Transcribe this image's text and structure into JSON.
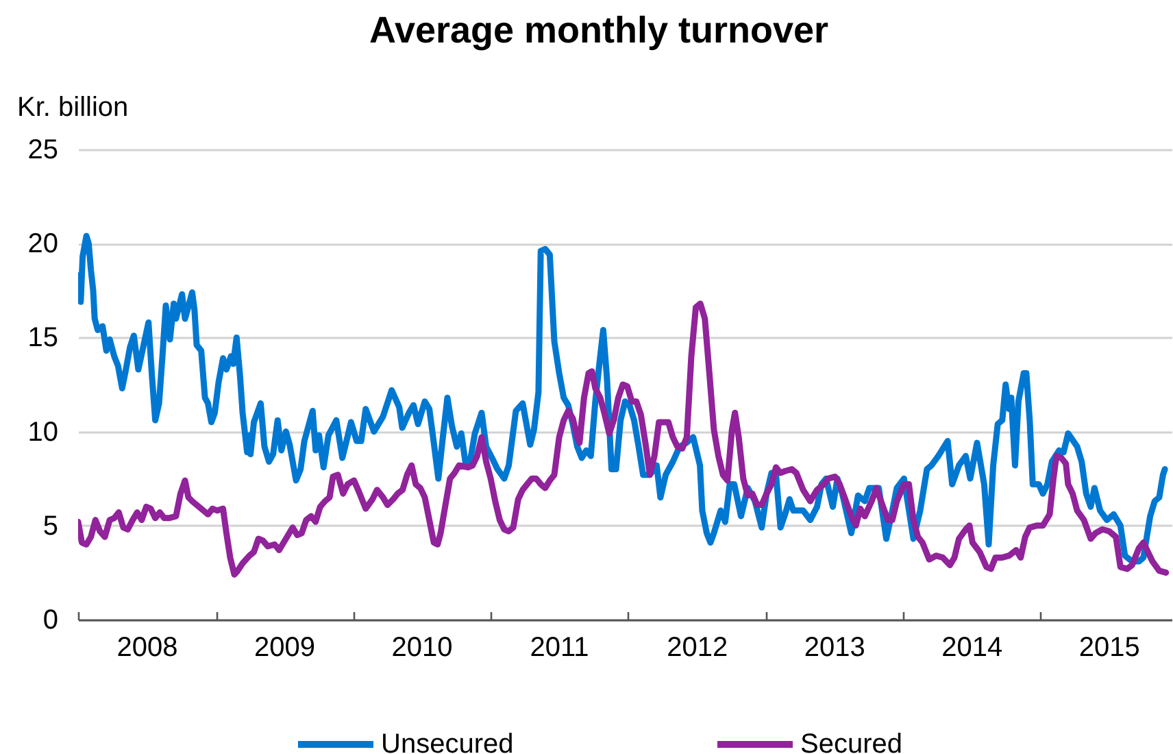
{
  "chart_data": {
    "type": "line",
    "title": "Average monthly turnover",
    "ylabel": "Kr. billion",
    "xlim": [
      "2008-01-01",
      "2015-12-15"
    ],
    "ylim": [
      0,
      25
    ],
    "yticks": [
      0,
      5,
      10,
      15,
      20,
      25
    ],
    "xticks": [
      {
        "value": "2008-01-01",
        "label": null
      },
      {
        "value": "2008-07-01",
        "label": "2008"
      },
      {
        "value": "2009-01-01",
        "label": null
      },
      {
        "value": "2009-07-01",
        "label": "2009"
      },
      {
        "value": "2010-01-01",
        "label": null
      },
      {
        "value": "2010-07-01",
        "label": "2010"
      },
      {
        "value": "2011-01-01",
        "label": null
      },
      {
        "value": "2011-07-01",
        "label": "2011"
      },
      {
        "value": "2012-01-01",
        "label": null
      },
      {
        "value": "2012-07-01",
        "label": "2012"
      },
      {
        "value": "2013-01-01",
        "label": null
      },
      {
        "value": "2013-07-01",
        "label": "2013"
      },
      {
        "value": "2014-01-01",
        "label": null
      },
      {
        "value": "2014-07-01",
        "label": "2014"
      },
      {
        "value": "2015-01-01",
        "label": null
      },
      {
        "value": "2015-07-01",
        "label": "2015"
      }
    ],
    "grid": "y",
    "legend": "bottom",
    "series": [
      {
        "name": "Unsecured",
        "color": "#0078d2",
        "x": [
          "2008-01-01",
          "2008-01-08",
          "2008-01-13",
          "2008-01-23",
          "2008-01-29",
          "2008-02-04",
          "2008-02-10",
          "2008-02-14",
          "2008-02-22",
          "2008-03-06",
          "2008-03-16",
          "2008-03-25",
          "2008-04-06",
          "2008-04-16",
          "2008-04-27",
          "2008-05-06",
          "2008-05-18",
          "2008-05-28",
          "2008-06-09",
          "2008-06-22",
          "2008-07-06",
          "2008-07-15",
          "2008-07-24",
          "2008-08-03",
          "2008-08-12",
          "2008-08-21",
          "2008-09-01",
          "2008-09-11",
          "2008-09-17",
          "2008-10-03",
          "2008-10-11",
          "2008-10-18",
          "2008-10-30",
          "2008-11-05",
          "2008-11-11",
          "2008-11-23",
          "2008-12-03",
          "2008-12-11",
          "2008-12-20",
          "2008-12-29",
          "2009-01-08",
          "2009-01-20",
          "2009-01-29",
          "2009-02-10",
          "2009-02-16",
          "2009-02-25",
          "2009-03-06",
          "2009-03-13",
          "2009-03-25",
          "2009-03-31",
          "2009-04-03",
          "2009-04-12",
          "2009-04-30",
          "2009-05-10",
          "2009-05-22",
          "2009-06-02",
          "2009-06-14",
          "2009-06-24",
          "2009-07-06",
          "2009-07-16",
          "2009-08-02",
          "2009-08-14",
          "2009-08-24",
          "2009-09-15",
          "2009-09-23",
          "2009-10-02",
          "2009-10-14",
          "2009-10-27",
          "2009-11-17",
          "2009-12-03",
          "2009-12-14",
          "2009-12-26",
          "2010-01-10",
          "2010-01-22",
          "2010-02-03",
          "2010-02-25",
          "2010-03-21",
          "2010-04-13",
          "2010-05-03",
          "2010-05-11",
          "2010-05-29",
          "2010-06-10",
          "2010-06-22",
          "2010-07-10",
          "2010-07-22",
          "2010-08-03",
          "2010-08-15",
          "2010-08-27",
          "2010-09-08",
          "2010-09-20",
          "2010-10-03",
          "2010-10-15",
          "2010-10-27",
          "2010-11-08",
          "2010-11-20",
          "2010-12-08",
          "2010-12-20",
          "2011-01-07",
          "2011-01-19",
          "2011-02-06",
          "2011-02-18",
          "2011-03-09",
          "2011-03-27",
          "2011-04-16",
          "2011-04-26",
          "2011-05-08",
          "2011-05-14",
          "2011-05-26",
          "2011-06-07",
          "2011-06-19",
          "2011-07-02",
          "2011-07-14",
          "2011-07-26",
          "2011-08-07",
          "2011-08-19",
          "2011-08-31",
          "2011-09-12",
          "2011-09-24",
          "2011-10-06",
          "2011-10-19",
          "2011-10-27",
          "2011-11-06",
          "2011-11-18",
          "2011-11-30",
          "2011-12-12",
          "2011-12-24",
          "2012-01-05",
          "2012-01-17",
          "2012-01-29",
          "2012-02-10",
          "2012-02-28",
          "2012-03-17",
          "2012-03-27",
          "2012-04-10",
          "2012-04-29",
          "2012-05-17",
          "2012-06-04",
          "2012-06-22",
          "2012-07-10",
          "2012-07-16",
          "2012-07-28",
          "2012-08-07",
          "2012-08-16",
          "2012-09-03",
          "2012-09-15",
          "2012-09-27",
          "2012-10-09",
          "2012-10-27",
          "2012-11-14",
          "2012-12-03",
          "2012-12-21",
          "2013-01-03",
          "2013-01-16",
          "2013-01-28",
          "2013-02-09",
          "2013-02-21",
          "2013-03-05",
          "2013-03-15",
          "2013-04-10",
          "2013-04-29",
          "2013-05-17",
          "2013-05-29",
          "2013-06-10",
          "2013-06-28",
          "2013-07-10",
          "2013-07-23",
          "2013-08-16",
          "2013-09-03",
          "2013-09-21",
          "2013-10-03",
          "2013-10-28",
          "2013-11-17",
          "2013-12-03",
          "2013-12-15",
          "2014-01-03",
          "2014-01-28",
          "2014-02-15",
          "2014-03-05",
          "2014-03-17",
          "2014-04-04",
          "2014-04-29",
          "2014-05-11",
          "2014-05-29",
          "2014-06-16",
          "2014-06-28",
          "2014-07-16",
          "2014-08-04",
          "2014-08-16",
          "2014-08-28",
          "2014-09-09",
          "2014-09-21",
          "2014-09-30",
          "2014-10-09",
          "2014-10-15",
          "2014-10-25",
          "2014-11-03",
          "2014-11-17",
          "2014-11-24",
          "2014-12-03",
          "2014-12-11",
          "2014-12-27",
          "2015-01-07",
          "2015-01-19",
          "2015-01-31",
          "2015-02-19",
          "2015-03-03",
          "2015-03-15",
          "2015-04-08",
          "2015-04-20",
          "2015-05-02",
          "2015-05-14",
          "2015-05-24",
          "2015-06-08",
          "2015-06-26",
          "2015-07-14",
          "2015-08-01",
          "2015-08-13",
          "2015-09-01",
          "2015-09-19",
          "2015-10-01",
          "2015-10-19",
          "2015-10-31",
          "2015-11-12",
          "2015-11-22",
          "2015-11-27"
        ],
        "values": [
          18.3,
          16.9,
          19.3,
          20.4,
          20.0,
          18.6,
          17.5,
          16.0,
          15.4,
          15.6,
          14.3,
          14.9,
          14.0,
          13.5,
          12.3,
          13.2,
          14.5,
          15.1,
          13.3,
          14.5,
          15.8,
          13.0,
          10.6,
          11.5,
          14.0,
          16.7,
          14.9,
          16.8,
          16.0,
          17.3,
          16.0,
          16.5,
          17.4,
          16.5,
          14.6,
          14.3,
          11.8,
          11.5,
          10.5,
          11.0,
          12.6,
          13.9,
          13.3,
          14.0,
          13.6,
          15.0,
          13.0,
          11.0,
          8.9,
          9.8,
          8.8,
          10.5,
          11.5,
          9.2,
          8.4,
          8.8,
          10.6,
          9.0,
          10.0,
          9.3,
          7.4,
          8.0,
          9.5,
          11.1,
          9.0,
          9.8,
          8.1,
          9.8,
          10.6,
          8.6,
          9.5,
          10.5,
          9.5,
          9.5,
          11.2,
          10.0,
          10.8,
          12.2,
          11.3,
          10.2,
          11.0,
          11.4,
          10.4,
          11.6,
          11.2,
          9.4,
          7.5,
          9.7,
          11.8,
          10.3,
          9.2,
          9.9,
          8.2,
          8.5,
          9.9,
          11.0,
          9.2,
          8.5,
          8.0,
          7.5,
          8.2,
          11.1,
          11.5,
          9.3,
          10.1,
          12.1,
          19.6,
          19.7,
          19.4,
          14.8,
          13.1,
          11.8,
          11.4,
          10.4,
          9.2,
          8.6,
          9.0,
          8.7,
          11.6,
          14.0,
          15.4,
          12.8,
          8.0,
          8.0,
          10.6,
          11.6,
          11.4,
          10.6,
          9.2,
          7.7,
          7.7,
          8.2,
          6.5,
          7.7,
          8.4,
          9.2,
          9.4,
          9.7,
          8.2,
          5.8,
          4.6,
          4.1,
          4.6,
          5.8,
          5.2,
          7.2,
          7.2,
          5.5,
          7.0,
          6.3,
          4.9,
          6.7,
          7.8,
          7.7,
          4.9,
          5.6,
          6.4,
          5.8,
          5.8,
          5.3,
          6.0,
          7.2,
          7.5,
          6.0,
          7.5,
          6.7,
          4.6,
          6.6,
          6.3,
          7.0,
          7.0,
          4.3,
          5.8,
          7.0,
          7.5,
          4.3,
          5.8,
          8.0,
          8.2,
          8.7,
          9.5,
          7.2,
          8.2,
          8.7,
          7.5,
          9.4,
          7.2,
          4.0,
          8.2,
          10.4,
          10.6,
          12.5,
          11.2,
          11.8,
          8.2,
          11.6,
          13.1,
          13.1,
          10.6,
          7.2,
          7.2,
          6.7,
          7.2,
          8.4,
          9.0,
          8.9,
          9.9,
          9.2,
          8.4,
          6.7,
          6.0,
          7.0,
          5.8,
          5.3,
          5.6,
          5.0,
          3.4,
          3.1,
          3.1,
          3.3,
          5.5,
          6.3,
          6.5,
          7.7,
          8.0
        ]
      },
      {
        "name": "Secured",
        "color": "#91239b",
        "x": [
          "2008-01-01",
          "2008-01-11",
          "2008-01-23",
          "2008-02-04",
          "2008-02-16",
          "2008-02-28",
          "2008-03-12",
          "2008-03-25",
          "2008-04-06",
          "2008-04-18",
          "2008-04-30",
          "2008-05-12",
          "2008-05-25",
          "2008-06-06",
          "2008-06-18",
          "2008-06-30",
          "2008-07-12",
          "2008-07-24",
          "2008-08-05",
          "2008-08-17",
          "2008-08-29",
          "2008-09-17",
          "2008-09-29",
          "2008-10-11",
          "2008-10-20",
          "2008-10-30",
          "2008-11-17",
          "2008-11-29",
          "2008-12-11",
          "2008-12-23",
          "2009-01-05",
          "2009-01-20",
          "2009-01-29",
          "2009-02-08",
          "2009-02-19",
          "2009-02-28",
          "2009-03-13",
          "2009-03-31",
          "2009-04-12",
          "2009-04-24",
          "2009-05-06",
          "2009-05-19",
          "2009-06-06",
          "2009-06-18",
          "2009-07-06",
          "2009-07-24",
          "2009-08-05",
          "2009-08-17",
          "2009-08-29",
          "2009-09-11",
          "2009-09-23",
          "2009-10-05",
          "2009-10-18",
          "2009-10-30",
          "2009-11-08",
          "2009-11-21",
          "2009-12-05",
          "2009-12-17",
          "2010-01-03",
          "2010-01-16",
          "2010-02-03",
          "2010-02-21",
          "2010-03-05",
          "2010-03-21",
          "2010-04-02",
          "2010-04-17",
          "2010-04-29",
          "2010-05-12",
          "2010-05-24",
          "2010-06-05",
          "2010-06-16",
          "2010-06-28",
          "2010-07-10",
          "2010-07-22",
          "2010-08-03",
          "2010-08-13",
          "2010-08-21",
          "2010-09-02",
          "2010-09-15",
          "2010-09-27",
          "2010-10-09",
          "2010-11-02",
          "2010-11-14",
          "2010-11-26",
          "2010-12-08",
          "2010-12-20",
          "2011-01-01",
          "2011-01-13",
          "2011-01-25",
          "2011-02-06",
          "2011-02-18",
          "2011-03-02",
          "2011-03-15",
          "2011-03-27",
          "2011-04-08",
          "2011-04-20",
          "2011-05-02",
          "2011-05-14",
          "2011-05-26",
          "2011-06-07",
          "2011-06-19",
          "2011-07-02",
          "2011-07-14",
          "2011-07-26",
          "2011-08-07",
          "2011-08-19",
          "2011-08-25",
          "2011-09-06",
          "2011-09-18",
          "2011-09-27",
          "2011-10-06",
          "2011-10-19",
          "2011-10-31",
          "2011-11-12",
          "2011-11-24",
          "2011-12-06",
          "2011-12-18",
          "2011-12-30",
          "2012-01-11",
          "2012-01-23",
          "2012-02-04",
          "2012-02-16",
          "2012-02-28",
          "2012-03-11",
          "2012-03-23",
          "2012-04-17",
          "2012-04-29",
          "2012-05-11",
          "2012-05-24",
          "2012-06-05",
          "2012-06-17",
          "2012-06-29",
          "2012-07-11",
          "2012-07-23",
          "2012-08-04",
          "2012-08-16",
          "2012-08-28",
          "2012-09-09",
          "2012-09-21",
          "2012-10-03",
          "2012-10-11",
          "2012-10-21",
          "2012-11-02",
          "2012-11-14",
          "2012-11-26",
          "2012-12-09",
          "2012-12-21",
          "2013-01-03",
          "2013-01-16",
          "2013-01-28",
          "2013-02-09",
          "2013-02-21",
          "2013-03-11",
          "2013-03-23",
          "2013-04-10",
          "2013-04-29",
          "2013-05-17",
          "2013-06-04",
          "2013-06-16",
          "2013-07-04",
          "2013-07-16",
          "2013-07-29",
          "2013-08-16",
          "2013-08-28",
          "2013-09-09",
          "2013-09-21",
          "2013-10-09",
          "2013-10-22",
          "2013-11-03",
          "2013-11-21",
          "2013-12-03",
          "2013-12-15",
          "2014-01-03",
          "2014-01-16",
          "2014-01-28",
          "2014-02-09",
          "2014-02-21",
          "2014-03-11",
          "2014-03-29",
          "2014-04-16",
          "2014-05-05",
          "2014-05-17",
          "2014-05-29",
          "2014-06-16",
          "2014-06-26",
          "2014-07-04",
          "2014-07-23",
          "2014-08-10",
          "2014-08-22",
          "2014-09-03",
          "2014-09-21",
          "2014-10-09",
          "2014-10-28",
          "2014-11-09",
          "2014-11-21",
          "2014-12-03",
          "2014-12-21",
          "2015-01-07",
          "2015-01-25",
          "2015-02-04",
          "2015-02-12",
          "2015-02-25",
          "2015-03-09",
          "2015-03-15",
          "2015-03-27",
          "2015-04-08",
          "2015-04-26",
          "2015-05-14",
          "2015-05-27",
          "2015-06-14",
          "2015-07-02",
          "2015-07-20",
          "2015-08-01",
          "2015-08-19",
          "2015-09-01",
          "2015-09-19",
          "2015-10-01",
          "2015-10-13",
          "2015-10-25",
          "2015-11-12",
          "2015-11-30"
        ],
        "values": [
          5.2,
          4.1,
          4.0,
          4.4,
          5.3,
          4.7,
          4.4,
          5.3,
          5.4,
          5.7,
          4.9,
          4.8,
          5.3,
          5.7,
          5.3,
          6.0,
          5.9,
          5.4,
          5.7,
          5.4,
          5.4,
          5.5,
          6.7,
          7.4,
          6.5,
          6.3,
          6.0,
          5.8,
          5.6,
          5.9,
          5.8,
          5.9,
          4.6,
          3.3,
          2.4,
          2.6,
          3.0,
          3.4,
          3.6,
          4.3,
          4.2,
          3.9,
          4.0,
          3.7,
          4.3,
          4.9,
          4.5,
          4.6,
          5.3,
          5.5,
          5.2,
          6.0,
          6.3,
          6.5,
          7.6,
          7.7,
          6.7,
          7.2,
          7.4,
          6.8,
          5.9,
          6.4,
          6.9,
          6.5,
          6.1,
          6.4,
          6.7,
          6.9,
          7.7,
          8.2,
          7.2,
          7.0,
          6.5,
          5.3,
          4.1,
          4.0,
          4.6,
          6.0,
          7.5,
          7.8,
          8.2,
          8.1,
          8.2,
          8.7,
          9.7,
          8.4,
          7.5,
          6.3,
          5.3,
          4.8,
          4.7,
          4.9,
          6.4,
          6.9,
          7.2,
          7.5,
          7.5,
          7.2,
          7.0,
          7.4,
          7.7,
          9.7,
          10.6,
          11.1,
          10.7,
          9.7,
          9.4,
          11.8,
          13.1,
          13.2,
          12.3,
          11.8,
          10.9,
          9.9,
          10.6,
          11.8,
          12.5,
          12.4,
          11.6,
          11.6,
          10.9,
          9.4,
          7.7,
          8.7,
          10.5,
          10.5,
          9.7,
          9.2,
          9.1,
          9.7,
          14.0,
          16.6,
          16.8,
          16.0,
          13.1,
          10.1,
          8.7,
          7.7,
          7.4,
          10.1,
          11.0,
          9.7,
          7.5,
          6.6,
          6.7,
          6.1,
          6.1,
          6.7,
          7.2,
          8.1,
          7.8,
          7.9,
          8.0,
          7.8,
          6.9,
          6.3,
          6.9,
          7.2,
          7.5,
          7.6,
          7.2,
          6.5,
          5.5,
          5.0,
          5.9,
          5.5,
          6.3,
          7.0,
          6.3,
          5.3,
          5.3,
          6.3,
          7.2,
          7.2,
          5.3,
          4.4,
          4.1,
          3.2,
          3.4,
          3.3,
          2.9,
          3.3,
          4.3,
          4.8,
          5.0,
          4.1,
          3.6,
          2.8,
          2.7,
          3.3,
          3.3,
          3.4,
          3.7,
          3.3,
          4.4,
          4.9,
          5.0,
          5.0,
          5.6,
          7.5,
          8.7,
          8.6,
          8.3,
          7.2,
          6.7,
          5.8,
          5.3,
          4.3,
          4.6,
          4.8,
          4.7,
          4.4,
          2.8,
          2.7,
          2.9,
          3.8,
          4.1,
          3.6,
          3.1,
          2.6,
          2.5
        ]
      }
    ]
  }
}
